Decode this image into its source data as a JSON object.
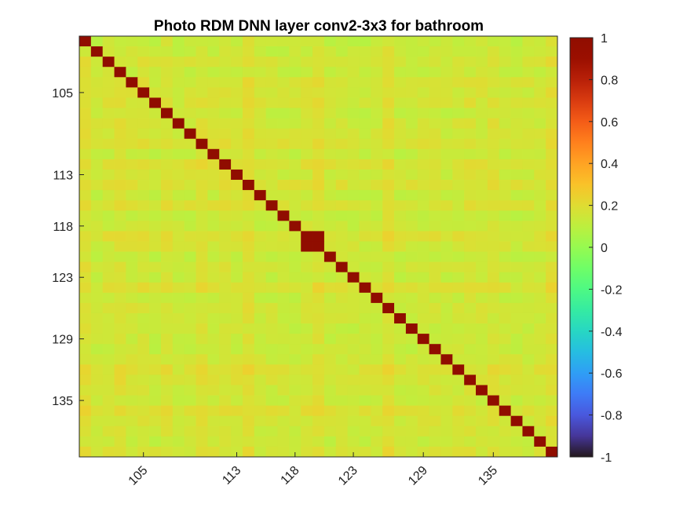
{
  "chart_data": {
    "type": "heatmap",
    "title": "Photo RDM DNN layer conv2-3x3 for bathroom",
    "xlabel": "",
    "ylabel": "",
    "index_start": 100,
    "index_end": 140,
    "x_ticks": [
      "105",
      "113",
      "118",
      "123",
      "129",
      "135"
    ],
    "y_ticks": [
      "105",
      "113",
      "118",
      "123",
      "129",
      "135"
    ],
    "diagonal_value": 1,
    "duplicated_item_block": [
      119,
      120
    ],
    "typical_off_diagonal": 0.15,
    "off_diagonal_range": [
      0.08,
      0.28
    ],
    "colorbar": {
      "min": -1,
      "max": 1,
      "ticks": [
        "1",
        "0.8",
        "0.6",
        "0.4",
        "0.2",
        "0",
        "-0.2",
        "-0.4",
        "-0.6",
        "-0.8",
        "-1"
      ],
      "colormap": "turbo"
    }
  }
}
